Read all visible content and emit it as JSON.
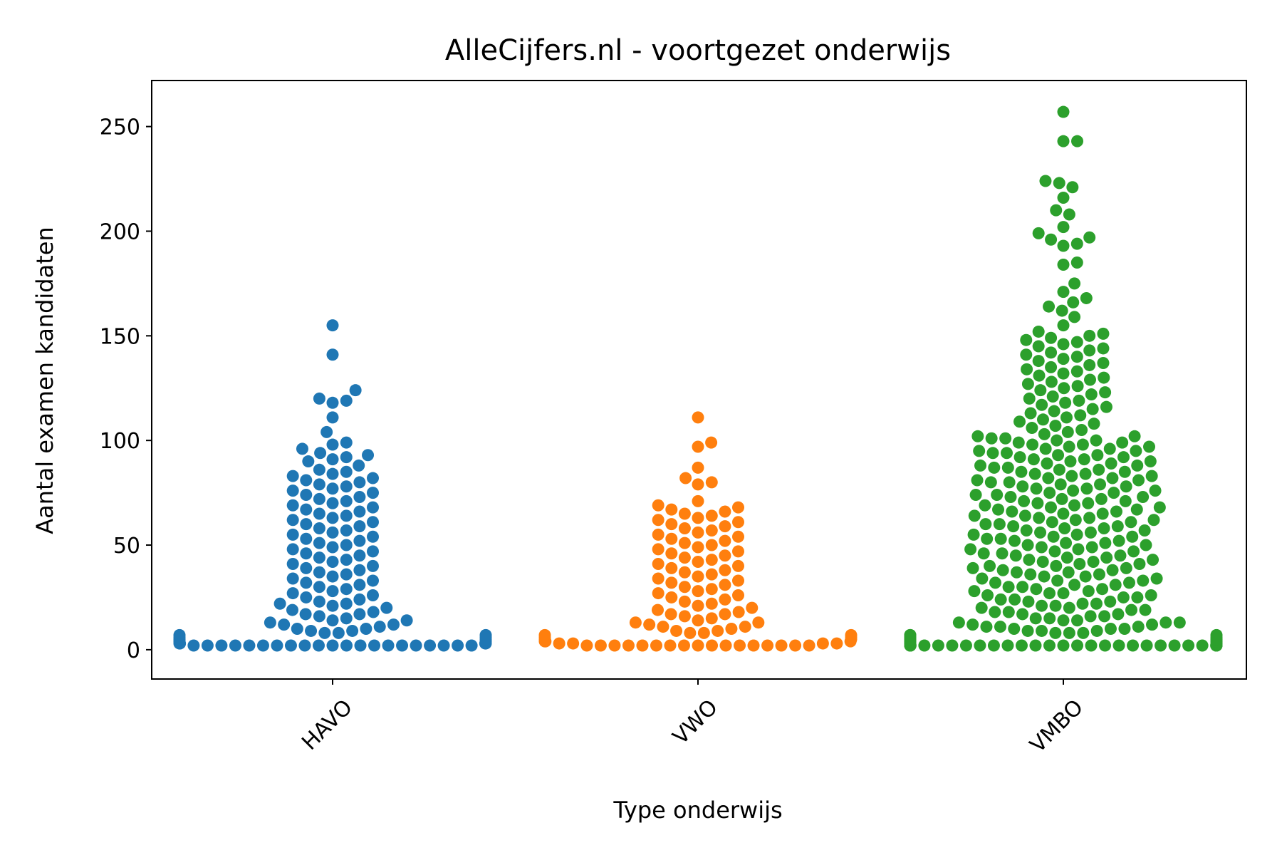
{
  "chart_data": {
    "type": "scatter",
    "subtype": "swarm",
    "title": "AlleCijfers.nl - voortgezet onderwijs",
    "xlabel": "Type onderwijs",
    "ylabel": "Aantal examen kandidaten",
    "ylim": [
      -14,
      272
    ],
    "yticks": [
      0,
      50,
      100,
      150,
      200,
      250
    ],
    "grid": false,
    "legend": "none",
    "x_tick_rotation": 45,
    "categories": [
      "HAVO",
      "VWO",
      "VMBO"
    ],
    "series": [
      {
        "color": "#1f77b4",
        "values": [
          2,
          2,
          2,
          2,
          2,
          2,
          2,
          2,
          2,
          2,
          2,
          2,
          2,
          2,
          2,
          2,
          2,
          2,
          2,
          2,
          2,
          3,
          3,
          3,
          3,
          4,
          4,
          4,
          5,
          5,
          5,
          6,
          6,
          7,
          7,
          8,
          8,
          9,
          9,
          10,
          10,
          11,
          12,
          12,
          13,
          14,
          14,
          15,
          16,
          17,
          17,
          18,
          19,
          20,
          21,
          22,
          22,
          23,
          24,
          25,
          26,
          27,
          28,
          29,
          30,
          31,
          32,
          33,
          34,
          35,
          36,
          37,
          38,
          39,
          40,
          41,
          42,
          43,
          44,
          45,
          46,
          47,
          48,
          49,
          50,
          51,
          52,
          53,
          54,
          55,
          56,
          57,
          58,
          59,
          60,
          61,
          62,
          63,
          64,
          65,
          66,
          67,
          68,
          69,
          70,
          71,
          72,
          73,
          74,
          75,
          76,
          77,
          78,
          79,
          80,
          81,
          82,
          83,
          84,
          85,
          86,
          88,
          90,
          91,
          92,
          93,
          94,
          96,
          98,
          99,
          104,
          111,
          118,
          119,
          120,
          124,
          141,
          155
        ]
      },
      {
        "color": "#ff7f0e",
        "values": [
          2,
          2,
          2,
          2,
          2,
          2,
          2,
          2,
          2,
          2,
          2,
          2,
          2,
          2,
          2,
          2,
          2,
          3,
          3,
          3,
          3,
          4,
          4,
          4,
          5,
          5,
          6,
          6,
          7,
          7,
          8,
          8,
          9,
          9,
          10,
          11,
          11,
          12,
          13,
          13,
          14,
          15,
          16,
          17,
          17,
          18,
          19,
          20,
          21,
          22,
          23,
          24,
          25,
          26,
          27,
          28,
          29,
          30,
          31,
          32,
          33,
          34,
          35,
          36,
          37,
          38,
          39,
          40,
          41,
          42,
          43,
          44,
          45,
          46,
          47,
          48,
          49,
          50,
          51,
          52,
          53,
          54,
          55,
          56,
          57,
          58,
          59,
          60,
          61,
          62,
          63,
          64,
          65,
          66,
          67,
          68,
          69,
          71,
          79,
          80,
          82,
          87,
          97,
          99,
          111
        ]
      },
      {
        "color": "#2ca02c",
        "values": [
          2,
          2,
          2,
          2,
          2,
          2,
          2,
          2,
          2,
          2,
          2,
          2,
          2,
          2,
          2,
          2,
          2,
          2,
          2,
          2,
          2,
          2,
          2,
          2,
          2,
          2,
          2,
          2,
          3,
          3,
          3,
          3,
          3,
          3,
          4,
          4,
          4,
          4,
          5,
          5,
          5,
          5,
          6,
          6,
          6,
          7,
          7,
          7,
          8,
          8,
          8,
          9,
          9,
          9,
          10,
          10,
          10,
          11,
          11,
          11,
          12,
          12,
          13,
          13,
          13,
          14,
          14,
          15,
          15,
          16,
          16,
          17,
          17,
          18,
          18,
          19,
          19,
          20,
          20,
          21,
          21,
          22,
          22,
          23,
          23,
          24,
          24,
          25,
          25,
          26,
          26,
          27,
          27,
          28,
          28,
          29,
          29,
          30,
          30,
          31,
          31,
          32,
          32,
          33,
          33,
          34,
          34,
          35,
          35,
          36,
          36,
          37,
          37,
          38,
          38,
          39,
          39,
          40,
          40,
          41,
          41,
          42,
          42,
          43,
          43,
          44,
          44,
          45,
          45,
          46,
          46,
          47,
          47,
          48,
          48,
          49,
          49,
          50,
          50,
          51,
          51,
          52,
          52,
          53,
          53,
          54,
          54,
          55,
          55,
          56,
          56,
          57,
          57,
          58,
          58,
          59,
          59,
          60,
          60,
          61,
          61,
          62,
          62,
          63,
          63,
          64,
          64,
          65,
          65,
          66,
          66,
          67,
          67,
          68,
          68,
          69,
          69,
          70,
          70,
          71,
          71,
          72,
          72,
          73,
          73,
          74,
          74,
          75,
          75,
          76,
          76,
          77,
          77,
          78,
          78,
          79,
          79,
          80,
          80,
          81,
          81,
          82,
          82,
          83,
          83,
          84,
          84,
          85,
          85,
          86,
          86,
          87,
          87,
          88,
          88,
          89,
          89,
          90,
          90,
          91,
          91,
          92,
          92,
          93,
          93,
          94,
          94,
          95,
          95,
          96,
          96,
          97,
          97,
          98,
          98,
          99,
          99,
          100,
          100,
          101,
          101,
          102,
          102,
          103,
          104,
          105,
          106,
          107,
          108,
          109,
          110,
          111,
          112,
          113,
          114,
          115,
          116,
          117,
          118,
          119,
          120,
          121,
          122,
          123,
          124,
          125,
          126,
          127,
          128,
          129,
          130,
          131,
          132,
          133,
          134,
          135,
          136,
          137,
          138,
          139,
          140,
          141,
          142,
          143,
          144,
          145,
          146,
          147,
          148,
          149,
          150,
          151,
          152,
          155,
          159,
          162,
          164,
          166,
          168,
          171,
          175,
          184,
          185,
          193,
          194,
          196,
          197,
          199,
          202,
          208,
          210,
          216,
          221,
          223,
          224,
          243,
          243,
          257
        ]
      }
    ]
  }
}
